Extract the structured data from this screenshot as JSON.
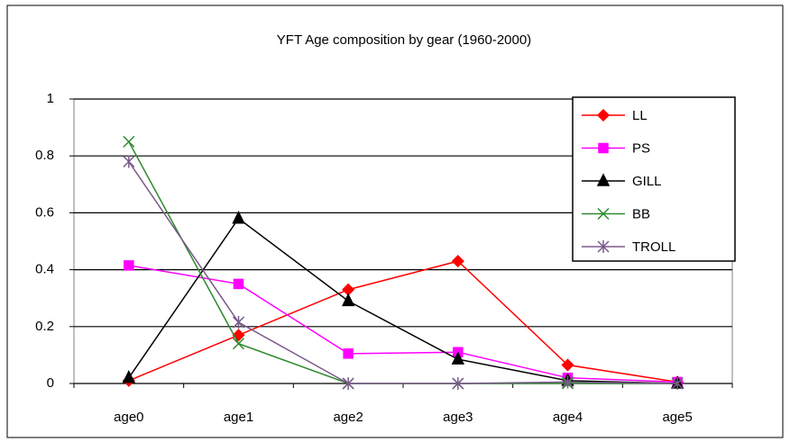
{
  "chart_data": {
    "type": "line",
    "title": "YFT Age composition by gear (1960-2000)",
    "categories": [
      "age0",
      "age1",
      "age2",
      "age3",
      "age4",
      "age5"
    ],
    "series": [
      {
        "name": "LL",
        "color": "#ff0000",
        "marker": "diamond",
        "values": [
          0.01,
          0.17,
          0.33,
          0.43,
          0.065,
          0.005
        ]
      },
      {
        "name": "PS",
        "color": "#ff00ff",
        "marker": "square",
        "values": [
          0.415,
          0.35,
          0.105,
          0.11,
          0.02,
          0.005
        ]
      },
      {
        "name": "GILL",
        "color": "#000000",
        "marker": "triangle",
        "values": [
          0.02,
          0.58,
          0.29,
          0.085,
          0.01,
          0
        ]
      },
      {
        "name": "BB",
        "color": "#2e8b2e",
        "marker": "x",
        "values": [
          0.85,
          0.14,
          0,
          0,
          0,
          0
        ]
      },
      {
        "name": "TROLL",
        "color": "#7a5a8a",
        "marker": "star",
        "values": [
          0.78,
          0.215,
          0,
          0,
          0.005,
          0
        ]
      }
    ],
    "ylim": [
      0,
      1
    ],
    "yticks": [
      0,
      0.2,
      0.4,
      0.6,
      0.8,
      1
    ],
    "grid": true,
    "legend": "upper right"
  }
}
